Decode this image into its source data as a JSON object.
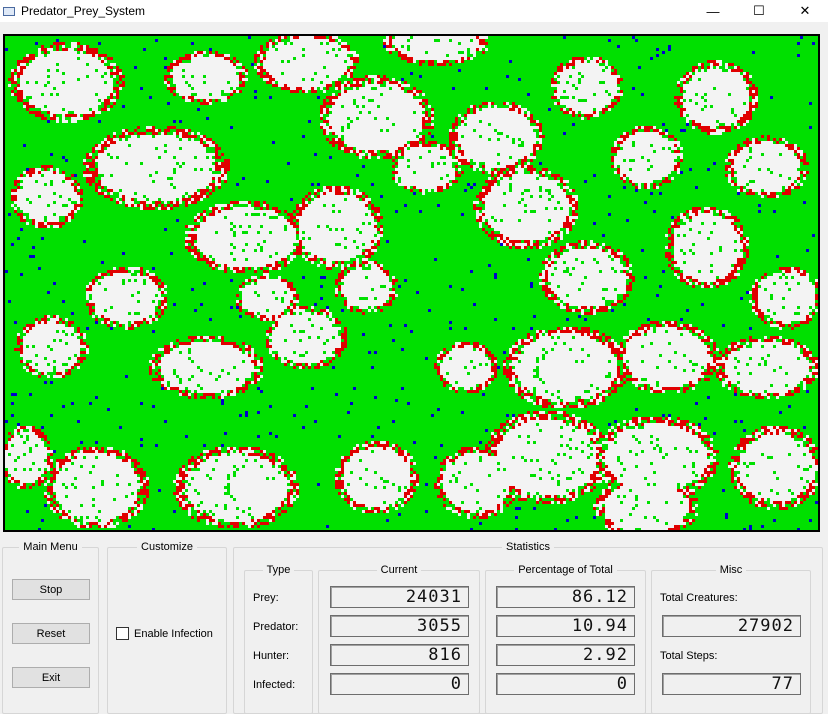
{
  "window": {
    "title": "Predator_Prey_System",
    "controls": [
      "—",
      "☐",
      "✕"
    ]
  },
  "groups": {
    "main_menu": "Main Menu",
    "customize": "Customize",
    "statistics": "Statistics",
    "type": "Type",
    "current": "Current",
    "percentage": "Percentage of Total",
    "misc": "Misc"
  },
  "buttons": {
    "stop": "Stop",
    "reset": "Reset",
    "exit": "Exit"
  },
  "checkbox": {
    "label": "Enable Infection",
    "checked": false
  },
  "stats": {
    "rows": [
      {
        "type": "Prey:",
        "current": "24031",
        "percent": "86.12"
      },
      {
        "type": "Predator:",
        "current": "3055",
        "percent": "10.94"
      },
      {
        "type": "Hunter:",
        "current": "816",
        "percent": "2.92"
      },
      {
        "type": "Infected:",
        "current": "0",
        "percent": "0"
      }
    ],
    "total_creatures_label": "Total Creatures:",
    "total_creatures": "27902",
    "total_steps_label": "Total Steps:",
    "total_steps": "77"
  },
  "colors": {
    "empty": "#f3f3f3",
    "prey": "#00e000",
    "predator": "#e00000",
    "hunter": "#0000cc"
  }
}
